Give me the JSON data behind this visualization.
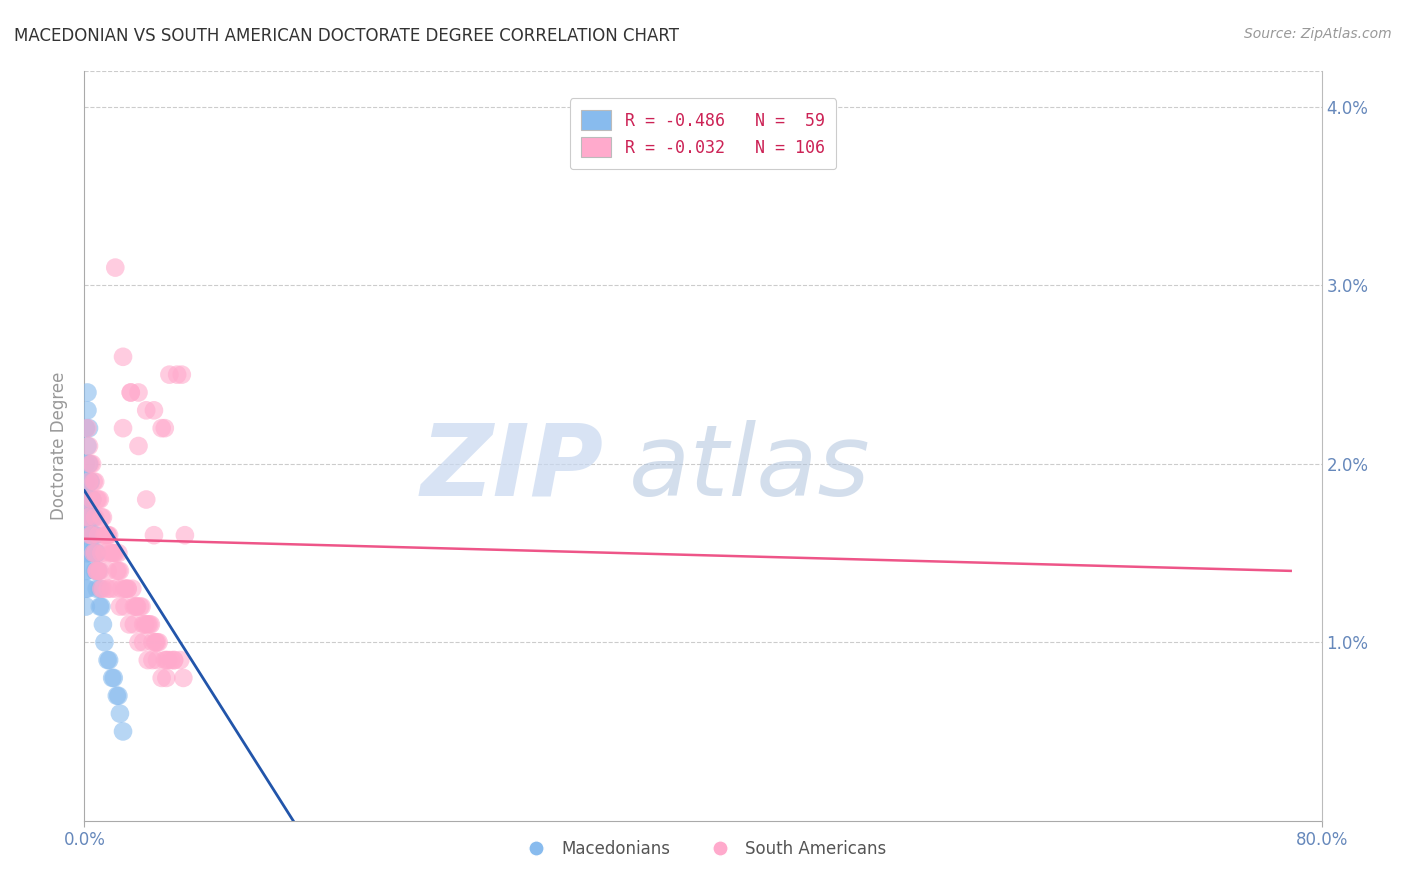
{
  "title": "MACEDONIAN VS SOUTH AMERICAN DOCTORATE DEGREE CORRELATION CHART",
  "source": "Source: ZipAtlas.com",
  "ylabel": "Doctorate Degree",
  "yticks": [
    0.0,
    0.01,
    0.02,
    0.03,
    0.04
  ],
  "ytick_labels": [
    "",
    "1.0%",
    "2.0%",
    "3.0%",
    "4.0%"
  ],
  "legend_blue_label": "R = -0.486   N =  59",
  "legend_pink_label": "R = -0.032   N = 106",
  "legend_bottom_blue": "Macedonians",
  "legend_bottom_pink": "South Americans",
  "blue_color": "#88BBEE",
  "pink_color": "#FFAACC",
  "blue_line_color": "#2255AA",
  "pink_line_color": "#EE5588",
  "watermark_zip": "ZIP",
  "watermark_atlas": "atlas",
  "blue_scatter_x": [
    0.001,
    0.001,
    0.001,
    0.001,
    0.001,
    0.001,
    0.001,
    0.001,
    0.001,
    0.001,
    0.002,
    0.002,
    0.002,
    0.002,
    0.002,
    0.002,
    0.002,
    0.002,
    0.003,
    0.003,
    0.003,
    0.003,
    0.003,
    0.004,
    0.004,
    0.004,
    0.004,
    0.005,
    0.005,
    0.005,
    0.006,
    0.006,
    0.007,
    0.007,
    0.008,
    0.008,
    0.009,
    0.01,
    0.01,
    0.011,
    0.012,
    0.013,
    0.015,
    0.016,
    0.018,
    0.019,
    0.021,
    0.022,
    0.023,
    0.025,
    0.002,
    0.002,
    0.003,
    0.003,
    0.004,
    0.005,
    0.006,
    0.007,
    0.008
  ],
  "blue_scatter_y": [
    0.022,
    0.02,
    0.019,
    0.018,
    0.017,
    0.016,
    0.015,
    0.014,
    0.013,
    0.012,
    0.021,
    0.019,
    0.018,
    0.017,
    0.016,
    0.015,
    0.014,
    0.013,
    0.02,
    0.018,
    0.017,
    0.016,
    0.015,
    0.019,
    0.017,
    0.016,
    0.015,
    0.018,
    0.016,
    0.015,
    0.017,
    0.015,
    0.016,
    0.014,
    0.015,
    0.013,
    0.014,
    0.013,
    0.012,
    0.012,
    0.011,
    0.01,
    0.009,
    0.009,
    0.008,
    0.008,
    0.007,
    0.007,
    0.006,
    0.005,
    0.024,
    0.023,
    0.022,
    0.02,
    0.019,
    0.018,
    0.017,
    0.016,
    0.015
  ],
  "pink_scatter_x": [
    0.001,
    0.002,
    0.002,
    0.003,
    0.003,
    0.004,
    0.004,
    0.005,
    0.005,
    0.006,
    0.006,
    0.007,
    0.007,
    0.008,
    0.008,
    0.009,
    0.009,
    0.01,
    0.01,
    0.011,
    0.011,
    0.012,
    0.012,
    0.013,
    0.014,
    0.015,
    0.015,
    0.016,
    0.017,
    0.018,
    0.019,
    0.02,
    0.021,
    0.022,
    0.023,
    0.024,
    0.025,
    0.026,
    0.027,
    0.028,
    0.03,
    0.031,
    0.032,
    0.033,
    0.034,
    0.035,
    0.036,
    0.037,
    0.038,
    0.039,
    0.04,
    0.041,
    0.042,
    0.043,
    0.044,
    0.045,
    0.046,
    0.047,
    0.048,
    0.05,
    0.052,
    0.053,
    0.054,
    0.055,
    0.056,
    0.058,
    0.06,
    0.062,
    0.063,
    0.065,
    0.003,
    0.005,
    0.007,
    0.009,
    0.011,
    0.013,
    0.015,
    0.017,
    0.02,
    0.023,
    0.026,
    0.029,
    0.032,
    0.035,
    0.038,
    0.041,
    0.044,
    0.047,
    0.05,
    0.053,
    0.008,
    0.015,
    0.022,
    0.028,
    0.034,
    0.04,
    0.046,
    0.052,
    0.058,
    0.064,
    0.02,
    0.025,
    0.03,
    0.035,
    0.04,
    0.045
  ],
  "pink_scatter_y": [
    0.017,
    0.022,
    0.018,
    0.021,
    0.017,
    0.02,
    0.016,
    0.02,
    0.016,
    0.019,
    0.015,
    0.019,
    0.015,
    0.018,
    0.014,
    0.018,
    0.014,
    0.018,
    0.014,
    0.017,
    0.013,
    0.017,
    0.013,
    0.016,
    0.016,
    0.016,
    0.013,
    0.016,
    0.015,
    0.015,
    0.015,
    0.015,
    0.014,
    0.014,
    0.014,
    0.013,
    0.022,
    0.013,
    0.013,
    0.013,
    0.024,
    0.013,
    0.012,
    0.012,
    0.012,
    0.024,
    0.012,
    0.012,
    0.011,
    0.011,
    0.023,
    0.011,
    0.011,
    0.011,
    0.01,
    0.023,
    0.01,
    0.01,
    0.01,
    0.022,
    0.022,
    0.009,
    0.009,
    0.025,
    0.009,
    0.009,
    0.025,
    0.009,
    0.025,
    0.016,
    0.019,
    0.018,
    0.017,
    0.016,
    0.015,
    0.015,
    0.014,
    0.013,
    0.013,
    0.012,
    0.012,
    0.011,
    0.011,
    0.01,
    0.01,
    0.009,
    0.009,
    0.009,
    0.008,
    0.008,
    0.014,
    0.016,
    0.015,
    0.013,
    0.012,
    0.011,
    0.01,
    0.009,
    0.009,
    0.008,
    0.031,
    0.026,
    0.024,
    0.021,
    0.018,
    0.016
  ],
  "blue_line_x": [
    0.0,
    0.135
  ],
  "blue_line_y": [
    0.0185,
    0.0
  ],
  "pink_line_x": [
    0.0,
    0.78
  ],
  "pink_line_y": [
    0.0158,
    0.014
  ],
  "xlim": [
    0.0,
    0.8
  ],
  "ylim": [
    0.0,
    0.042
  ]
}
